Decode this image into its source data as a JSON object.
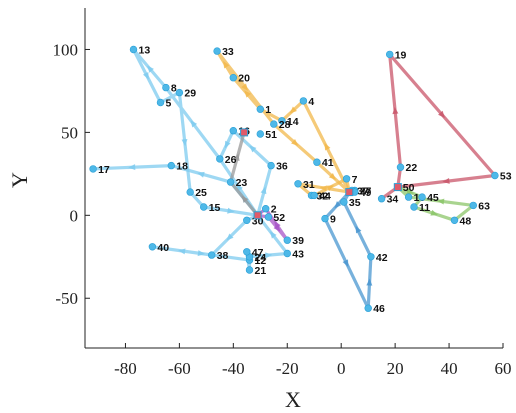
{
  "chart_data": {
    "type": "scatter",
    "xlabel": "X",
    "ylabel": "Y",
    "xlim": [
      -95,
      60
    ],
    "ylim": [
      -80,
      125
    ],
    "xticks": [
      -80,
      -60,
      -40,
      -20,
      0,
      20,
      40,
      60
    ],
    "yticks": [
      -50,
      0,
      50,
      100
    ],
    "xtick_labels": [
      "-80",
      "-60",
      "-40",
      "-20",
      "0",
      "20",
      "40",
      "60"
    ],
    "ytick_labels": [
      "-50",
      "0",
      "50",
      "100"
    ],
    "grid": false,
    "colors": {
      "node": "#4db8e8",
      "node_edge": "#2a9fd6",
      "depot": "#e05a6a",
      "route_light_blue": "#7ecbef",
      "route_yellow": "#f2b84b",
      "route_red": "#c9566a",
      "route_green": "#8cc66a",
      "route_mid_blue": "#4a97d0",
      "route_purple": "#a855c8",
      "route_gray": "#999999"
    },
    "nodes": [
      {
        "id": "1",
        "x": -30,
        "y": 64
      },
      {
        "id": "2",
        "x": -28,
        "y": 4
      },
      {
        "id": "4",
        "x": -14,
        "y": 69
      },
      {
        "id": "5",
        "x": -67,
        "y": 68
      },
      {
        "id": "7",
        "x": 2,
        "y": 22
      },
      {
        "id": "8",
        "x": -65,
        "y": 77
      },
      {
        "id": "9",
        "x": -6,
        "y": -2
      },
      {
        "id": "10",
        "x": 25,
        "y": 11
      },
      {
        "id": "11",
        "x": 27,
        "y": 5
      },
      {
        "id": "12",
        "x": -34,
        "y": -27
      },
      {
        "id": "13",
        "x": -77,
        "y": 100
      },
      {
        "id": "14",
        "x": -22,
        "y": 57
      },
      {
        "id": "15",
        "x": -51,
        "y": 5
      },
      {
        "id": "16",
        "x": -40,
        "y": 51
      },
      {
        "id": "17",
        "x": -92,
        "y": 28
      },
      {
        "id": "18",
        "x": -63,
        "y": 30
      },
      {
        "id": "19",
        "x": 18,
        "y": 97
      },
      {
        "id": "20",
        "x": -40,
        "y": 83
      },
      {
        "id": "21",
        "x": -34,
        "y": -33
      },
      {
        "id": "22",
        "x": 22,
        "y": 29
      },
      {
        "id": "23",
        "x": -41,
        "y": 20
      },
      {
        "id": "24",
        "x": -34,
        "y": -25
      },
      {
        "id": "25",
        "x": -56,
        "y": 14
      },
      {
        "id": "26",
        "x": -45,
        "y": 34
      },
      {
        "id": "27",
        "x": 5,
        "y": 15
      },
      {
        "id": "28",
        "x": -25,
        "y": 55
      },
      {
        "id": "29",
        "x": -60,
        "y": 74
      },
      {
        "id": "30",
        "x": -35,
        "y": -3
      },
      {
        "id": "31",
        "x": -16,
        "y": 19
      },
      {
        "id": "32",
        "x": -11,
        "y": 12
      },
      {
        "id": "33",
        "x": -46,
        "y": 99
      },
      {
        "id": "34",
        "x": 15,
        "y": 10
      },
      {
        "id": "35",
        "x": 1,
        "y": 8
      },
      {
        "id": "36",
        "x": -26,
        "y": 30
      },
      {
        "id": "37",
        "x": 4,
        "y": 15
      },
      {
        "id": "38",
        "x": -48,
        "y": -24
      },
      {
        "id": "39",
        "x": -20,
        "y": -15
      },
      {
        "id": "40",
        "x": -70,
        "y": -19
      },
      {
        "id": "41",
        "x": -9,
        "y": 32
      },
      {
        "id": "42",
        "x": 11,
        "y": -25
      },
      {
        "id": "43",
        "x": -20,
        "y": -23
      },
      {
        "id": "44",
        "x": -10,
        "y": 12
      },
      {
        "id": "45",
        "x": 30,
        "y": 11
      },
      {
        "id": "46",
        "x": 10,
        "y": -56
      },
      {
        "id": "47",
        "x": -35,
        "y": -22
      },
      {
        "id": "48",
        "x": 42,
        "y": -3
      },
      {
        "id": "49",
        "x": 5,
        "y": 14
      },
      {
        "id": "50",
        "x": 21,
        "y": 17
      },
      {
        "id": "51",
        "x": -30,
        "y": 49
      },
      {
        "id": "52",
        "x": -27,
        "y": -1
      },
      {
        "id": "53",
        "x": 57,
        "y": 24
      },
      {
        "id": "63",
        "x": 49,
        "y": 6
      }
    ],
    "depots": [
      {
        "x": -31,
        "y": 0
      },
      {
        "x": 3,
        "y": 14
      },
      {
        "x": 21,
        "y": 17
      },
      {
        "x": -36,
        "y": 50
      }
    ],
    "routes": [
      {
        "color": "route_light_blue",
        "path": [
          [
            -31,
            0
          ],
          [
            -41,
            20
          ],
          [
            -63,
            30
          ],
          [
            -92,
            28
          ]
        ]
      },
      {
        "color": "route_light_blue",
        "path": [
          [
            -31,
            0
          ],
          [
            -45,
            34
          ],
          [
            -65,
            77
          ],
          [
            -77,
            100
          ],
          [
            -67,
            68
          ],
          [
            -60,
            74
          ],
          [
            -56,
            14
          ],
          [
            -51,
            5
          ],
          [
            -31,
            0
          ]
        ]
      },
      {
        "color": "route_light_blue",
        "path": [
          [
            -31,
            0
          ],
          [
            -26,
            30
          ],
          [
            -40,
            51
          ],
          [
            -45,
            34
          ]
        ]
      },
      {
        "color": "route_light_blue",
        "path": [
          [
            -31,
            0
          ],
          [
            -35,
            -3
          ],
          [
            -48,
            -24
          ],
          [
            -70,
            -19
          ],
          [
            -34,
            -27
          ],
          [
            -35,
            -22
          ],
          [
            -34,
            -33
          ],
          [
            -34,
            -25
          ],
          [
            -20,
            -23
          ],
          [
            -31,
            0
          ]
        ]
      },
      {
        "color": "route_yellow",
        "path": [
          [
            3,
            14
          ],
          [
            -14,
            69
          ],
          [
            -22,
            57
          ],
          [
            -30,
            64
          ],
          [
            -40,
            83
          ],
          [
            -46,
            99
          ],
          [
            -25,
            55
          ],
          [
            -9,
            32
          ],
          [
            3,
            14
          ]
        ]
      },
      {
        "color": "route_yellow",
        "path": [
          [
            3,
            14
          ],
          [
            -16,
            19
          ],
          [
            -11,
            12
          ],
          [
            -10,
            12
          ],
          [
            2,
            22
          ],
          [
            3,
            14
          ]
        ]
      },
      {
        "color": "route_red",
        "path": [
          [
            21,
            17
          ],
          [
            22,
            29
          ],
          [
            18,
            97
          ],
          [
            57,
            24
          ],
          [
            21,
            17
          ],
          [
            15,
            10
          ],
          [
            21,
            17
          ]
        ]
      },
      {
        "color": "route_green",
        "path": [
          [
            21,
            17
          ],
          [
            30,
            11
          ],
          [
            27,
            5
          ],
          [
            42,
            -3
          ],
          [
            49,
            6
          ],
          [
            25,
            11
          ],
          [
            21,
            17
          ]
        ]
      },
      {
        "color": "route_mid_blue",
        "path": [
          [
            3,
            14
          ],
          [
            -6,
            -2
          ],
          [
            10,
            -56
          ],
          [
            11,
            -25
          ],
          [
            1,
            8
          ],
          [
            3,
            14
          ]
        ]
      },
      {
        "color": "route_purple",
        "path": [
          [
            -31,
            0
          ],
          [
            -27,
            -1
          ],
          [
            -20,
            -15
          ],
          [
            -28,
            4
          ],
          [
            -31,
            0
          ]
        ]
      },
      {
        "color": "route_gray",
        "path": [
          [
            -31,
            0
          ],
          [
            -41,
            20
          ],
          [
            -36,
            50
          ]
        ]
      }
    ]
  }
}
